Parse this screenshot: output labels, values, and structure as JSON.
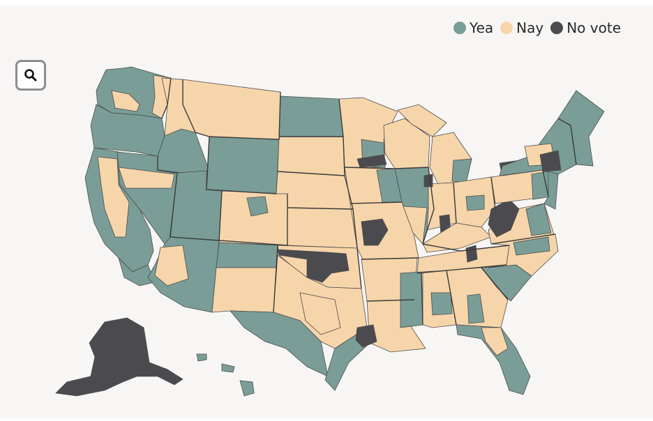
{
  "legend": {
    "items": [
      {
        "label": "Yea",
        "color": "#7a9e97"
      },
      {
        "label": "Nay",
        "color": "#f7d5aa"
      },
      {
        "label": "No vote",
        "color": "#4b4b4f"
      }
    ]
  },
  "zoom_button": {
    "icon": "search-icon"
  },
  "colors": {
    "background": "#f7f6f5",
    "border": "#4b4b4b"
  }
}
